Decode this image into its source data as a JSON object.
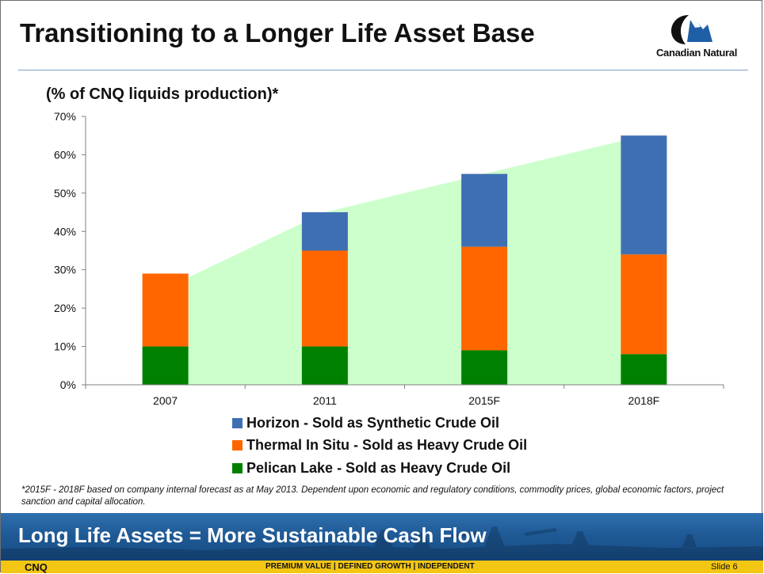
{
  "header": {
    "title": "Transitioning to a Longer Life Asset Base",
    "logo_text": "Canadian Natural",
    "logo_colors": {
      "main": "#111111",
      "accent": "#1f5fa6"
    }
  },
  "chart_data": {
    "type": "bar",
    "stacked": true,
    "title": "(% of CNQ liquids production)*",
    "categories": [
      "2007",
      "2011",
      "2015F",
      "2018F"
    ],
    "y_tick_labels": [
      "0%",
      "10%",
      "20%",
      "30%",
      "40%",
      "50%",
      "60%",
      "70%"
    ],
    "ylim": [
      0,
      70
    ],
    "grid": false,
    "legend_position": "bottom",
    "background_area": {
      "color": "#ccffcc",
      "values": [
        28,
        45,
        55,
        65
      ]
    },
    "series": [
      {
        "name": "Pelican Lake - Sold as Heavy Crude Oil",
        "color": "#008000",
        "values": [
          10,
          10,
          9,
          8
        ]
      },
      {
        "name": "Thermal In Situ - Sold as Heavy Crude Oil",
        "color": "#ff6600",
        "values": [
          19,
          25,
          27,
          26
        ]
      },
      {
        "name": "Horizon - Sold as Synthetic Crude Oil",
        "color": "#3f6fb3",
        "values": [
          0,
          10,
          19,
          31
        ]
      }
    ],
    "legend_order": [
      2,
      1,
      0
    ]
  },
  "footnote": "*2015F - 2018F based on company internal forecast as at May 2013. Dependent upon economic and regulatory conditions, commodity prices, global economic factors, project sanction and capital allocation.",
  "banner": {
    "text": "Long Life Assets = More Sustainable Cash Flow"
  },
  "footer": {
    "ticker": "CNQ",
    "tagline": "PREMIUM VALUE  |  DEFINED GROWTH  |  INDEPENDENT",
    "slide": "Slide 6"
  }
}
